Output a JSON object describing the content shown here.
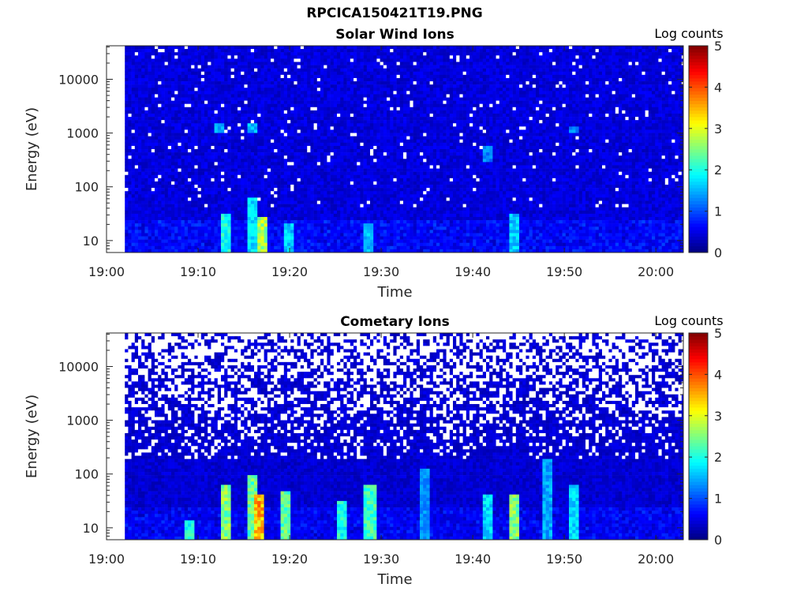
{
  "figure": {
    "title": "RPCICA150421T19.PNG"
  },
  "colors": {
    "colormap": "jet",
    "background": "#ffffff",
    "empty_bin": "#ffffff"
  },
  "chart_data": [
    {
      "type": "heatmap",
      "title": "Solar Wind Ions",
      "xlabel": "Time",
      "ylabel": "Energy (eV)",
      "x_ticks": [
        "19:00",
        "19:10",
        "19:20",
        "19:30",
        "19:40",
        "19:50",
        "20:00"
      ],
      "xlim_minutes": [
        0,
        63
      ],
      "data_start_minute": 2,
      "y_scale": "log",
      "y_ticks": [
        10,
        100,
        1000,
        10000
      ],
      "ylim": [
        6,
        42000
      ],
      "colorbar": {
        "label": "Log counts",
        "ticks": [
          0,
          1,
          2,
          3,
          4,
          5
        ],
        "range": [
          0,
          5
        ]
      },
      "background_level": 0.45,
      "hotspots": [
        {
          "minute": 12.8,
          "energy_range": [
            6,
            30
          ],
          "level": 2.2
        },
        {
          "minute": 15.8,
          "energy_range": [
            6,
            60
          ],
          "level": 1.9
        },
        {
          "minute": 16.7,
          "energy_range": [
            6,
            28
          ],
          "level": 3.0
        },
        {
          "minute": 12.3,
          "energy_range": [
            1000,
            1500
          ],
          "level": 1.7
        },
        {
          "minute": 15.7,
          "energy_range": [
            1000,
            1500
          ],
          "level": 1.7
        },
        {
          "minute": 19.8,
          "energy_range": [
            6,
            20
          ],
          "level": 1.8
        },
        {
          "minute": 28.5,
          "energy_range": [
            6,
            20
          ],
          "level": 1.7
        },
        {
          "minute": 44.5,
          "energy_range": [
            6,
            30
          ],
          "level": 1.8
        },
        {
          "minute": 41.5,
          "energy_range": [
            300,
            600
          ],
          "level": 1.4
        },
        {
          "minute": 51.0,
          "energy_range": [
            1000,
            1400
          ],
          "level": 1.4
        }
      ]
    },
    {
      "type": "heatmap",
      "title": "Cometary Ions",
      "xlabel": "Time",
      "ylabel": "Energy (eV)",
      "x_ticks": [
        "19:00",
        "19:10",
        "19:20",
        "19:30",
        "19:40",
        "19:50",
        "20:00"
      ],
      "xlim_minutes": [
        0,
        63
      ],
      "data_start_minute": 2,
      "y_scale": "log",
      "y_ticks": [
        10,
        100,
        1000,
        10000
      ],
      "ylim": [
        6,
        42000
      ],
      "colorbar": {
        "label": "Log counts",
        "ticks": [
          0,
          1,
          2,
          3,
          4,
          5
        ],
        "range": [
          0,
          5
        ]
      },
      "background_level": 0.4,
      "hotspots": [
        {
          "minute": 9.0,
          "energy_range": [
            6,
            14
          ],
          "level": 2.2
        },
        {
          "minute": 12.8,
          "energy_range": [
            6,
            60
          ],
          "level": 2.8
        },
        {
          "minute": 15.8,
          "energy_range": [
            6,
            90
          ],
          "level": 2.6
        },
        {
          "minute": 16.6,
          "energy_range": [
            6,
            40
          ],
          "level": 3.8
        },
        {
          "minute": 19.5,
          "energy_range": [
            6,
            50
          ],
          "level": 2.6
        },
        {
          "minute": 25.5,
          "energy_range": [
            6,
            30
          ],
          "level": 2.2
        },
        {
          "minute": 28.6,
          "energy_range": [
            6,
            60
          ],
          "level": 2.4
        },
        {
          "minute": 34.6,
          "energy_range": [
            6,
            120
          ],
          "level": 1.5
        },
        {
          "minute": 41.5,
          "energy_range": [
            6,
            40
          ],
          "level": 1.9
        },
        {
          "minute": 44.5,
          "energy_range": [
            6,
            40
          ],
          "level": 2.8
        },
        {
          "minute": 48.0,
          "energy_range": [
            6,
            200
          ],
          "level": 1.6
        },
        {
          "minute": 51.0,
          "energy_range": [
            6,
            60
          ],
          "level": 1.9
        }
      ]
    }
  ]
}
